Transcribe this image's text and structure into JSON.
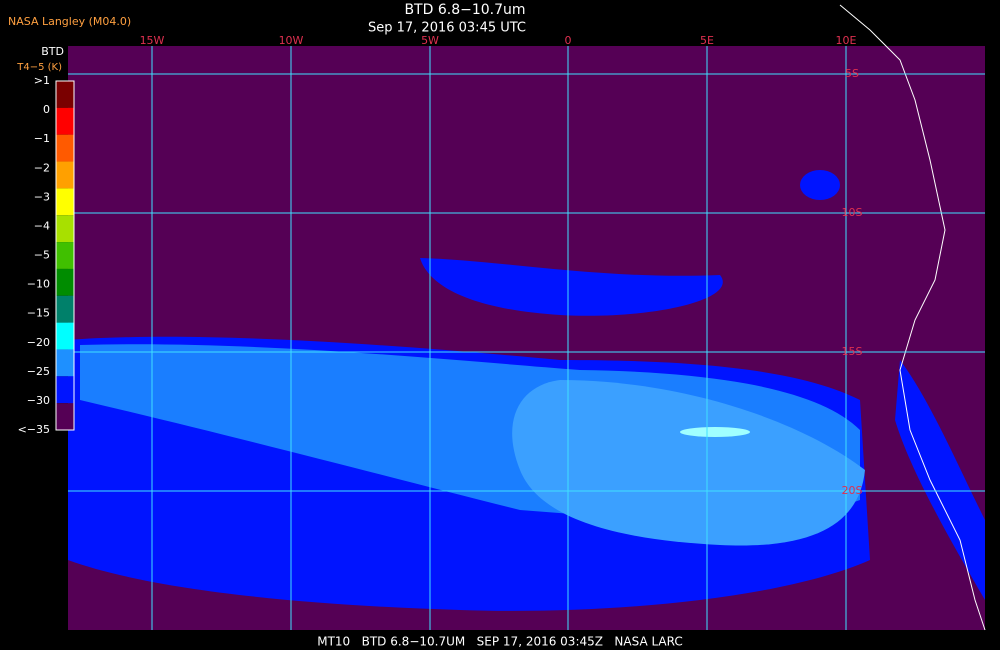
{
  "header": {
    "source": "NASA Langley (M04.0)",
    "title": "BTD 6.8−10.7um",
    "subtitle": "Sep 17, 2016 03:45 UTC"
  },
  "map": {
    "longitude_labels": [
      "15W",
      "10W",
      "5W",
      "0",
      "5E",
      "10E"
    ],
    "latitude_labels": [
      "5S",
      "10S",
      "15S",
      "20S"
    ]
  },
  "colorbar": {
    "title": "BTD",
    "units": "T4−5 (K)",
    "labels": [
      ">1",
      "0",
      "−1",
      "−2",
      "−3",
      "−4",
      "−5",
      "−10",
      "−15",
      "−20",
      "−25",
      "−30",
      "<−35"
    ],
    "colors": [
      "#7a0000",
      "#ff0000",
      "#ff5a00",
      "#ffa000",
      "#ffff00",
      "#a8e000",
      "#40c000",
      "#008c00",
      "#00806a",
      "#00ffff",
      "#1e90ff",
      "#0014ff",
      "#550055"
    ]
  },
  "footer": "MT10   BTD 6.8−10.7UM   SEP 17, 2016 03:45Z   NASA LARC"
}
